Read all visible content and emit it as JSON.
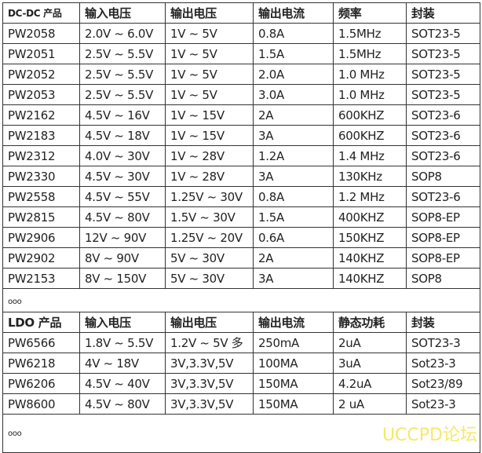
{
  "dcdc": {
    "headers": [
      "DC-DC 产品",
      "输入电压",
      "输出电压",
      "输出电流",
      "频率",
      "封装"
    ],
    "rows": [
      [
        "PW2058",
        "2.0V ~ 6.0V",
        "1V ~ 5V",
        "0.8A",
        "1.5MHz",
        "SOT23-5"
      ],
      [
        "PW2051",
        "2.5V ~ 5.5V",
        "1V ~ 5V",
        "1.5A",
        "1.5MHz",
        "SOT23-5"
      ],
      [
        "PW2052",
        "2.5V ~ 5.5V",
        "1V ~ 5V",
        "2.0A",
        "1.0 MHz",
        "SOT23-5"
      ],
      [
        "PW2053",
        "2.5V ~ 5.5V",
        "1V ~ 5V",
        "3.0A",
        "1.0 MHz",
        "SOT23-5"
      ],
      [
        "PW2162",
        "4.5V ~ 16V",
        "1V ~ 15V",
        "2A",
        "600KHZ",
        "SOT23-6"
      ],
      [
        "PW2183",
        "4.5V ~ 18V",
        "1V ~ 15V",
        "3A",
        "600KHZ",
        "SOT23-6"
      ],
      [
        "PW2312",
        "4.0V ~ 30V",
        "1V ~ 28V",
        "1.2A",
        "1.4 MHz",
        "SOT23-6"
      ],
      [
        "PW2330",
        "4.5V ~ 30V",
        "1V ~ 28V",
        "3A",
        "130KHz",
        "SOP8"
      ],
      [
        "PW2558",
        "4.5V ~ 55V",
        "1.25V ~ 30V",
        "0.8A",
        "1.2 MHz",
        "SOT23-6"
      ],
      [
        "PW2815",
        "4.5V ~ 80V",
        "1.5V ~ 30V",
        "1.5A",
        "400KHZ",
        "SOP8-EP"
      ],
      [
        "PW2906",
        "12V ~ 90V",
        "1.25V ~ 20V",
        "0.6A",
        "150KHZ",
        "SOP8-EP"
      ],
      [
        "PW2902",
        "8V ~ 90V",
        "5V ~ 30V",
        "2A",
        "140KHZ",
        "SOP8-EP"
      ],
      [
        "PW2153",
        "8V ~ 150V",
        "5V ~ 30V",
        "3A",
        "140KHZ",
        "SOP8"
      ]
    ],
    "ellipsis": "ooo"
  },
  "ldo": {
    "headers": [
      "LDO 产品",
      "输入电压",
      "输出电压",
      "输出电流",
      "静态功耗",
      "封装"
    ],
    "rows": [
      [
        "PW6566",
        "1.8V ~ 5.5V",
        "1.2V ~ 5V 多",
        "250mA",
        "2uA",
        "SOT23-3"
      ],
      [
        "PW6218",
        "4V ~ 18V",
        "3V,3.3V,5V",
        "100MA",
        "3uA",
        "Sot23-3"
      ],
      [
        "PW6206",
        "4.5V ~ 40V",
        "3V,3.3V,5V",
        "150MA",
        "4.2uA",
        "Sot23/89"
      ],
      [
        "PW8600",
        "4.5V ~ 80V",
        "3V,3.3V,5V",
        "150MA",
        "2 uA",
        "Sot23-3"
      ]
    ],
    "ellipsis": "ooo"
  },
  "watermark": "UCCPD论坛"
}
